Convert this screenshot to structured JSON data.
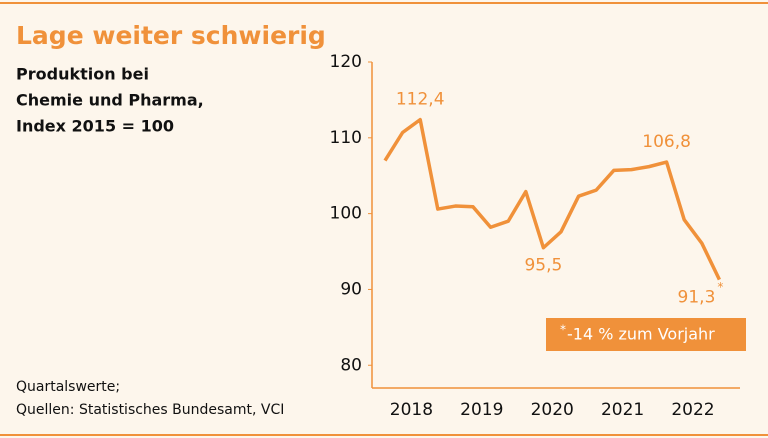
{
  "chart_data": {
    "type": "line",
    "title": "Lage weiter schwierig",
    "subtitle": [
      "Produktion bei",
      "Chemie und Pharma,",
      "Index 2015 = 100"
    ],
    "footnote": [
      "Quartalswerte;",
      "Quellen: Statistisches Bundesamt, VCI"
    ],
    "years": [
      "2018",
      "2019",
      "2020",
      "2021",
      "2022"
    ],
    "series": [
      {
        "color": "#f0913a",
        "values": [
          107.0,
          110.7,
          112.4,
          100.6,
          101.0,
          100.9,
          98.2,
          99.0,
          102.9,
          95.5,
          97.6,
          102.3,
          103.1,
          105.7,
          105.8,
          106.2,
          106.8,
          99.2,
          96.1,
          91.3
        ],
        "value_labels": [
          null,
          null,
          "112,4",
          null,
          null,
          null,
          null,
          null,
          null,
          "95,5",
          null,
          null,
          null,
          null,
          null,
          null,
          "106,8",
          null,
          null,
          "91,3"
        ]
      }
    ],
    "asterisk": "*",
    "annotation": "-14 % zum Vorjahr",
    "ylim": [
      77,
      120
    ],
    "yticks": [
      80,
      90,
      100,
      110,
      120
    ]
  }
}
